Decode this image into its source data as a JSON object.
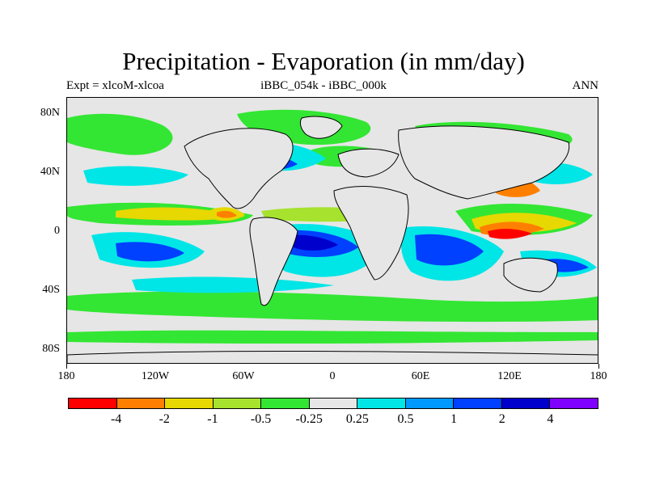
{
  "title": "Precipitation - Evaporation (in mm/day)",
  "subtitle_left": "Expt = xlcoM-xlcoa",
  "subtitle_center": "iBBC_054k - iBBC_000k",
  "subtitle_right": "ANN",
  "y_axis_labels": [
    "80N",
    "40N",
    "0",
    "40S",
    "80S"
  ],
  "x_axis_labels": [
    "180",
    "120W",
    "60W",
    "0",
    "60E",
    "120E",
    "180"
  ],
  "colorbar": {
    "colors": [
      "#ff0000",
      "#ff8000",
      "#e6d800",
      "#a6e22e",
      "#33e633",
      "#e6e6e6",
      "#00e6e6",
      "#0099ff",
      "#0040ff",
      "#0000cc",
      "#7f00ff"
    ],
    "labels": [
      "-4",
      "-2",
      "-1",
      "-0.5",
      "-0.25",
      "0.25",
      "0.5",
      "1",
      "2",
      "4"
    ]
  },
  "map_colors": {
    "background": "#e6e6e6",
    "red": "#ff0000",
    "orange": "#ff8000",
    "yellow": "#e6d800",
    "lightgreen": "#a6e22e",
    "green": "#33e633",
    "cyan": "#00e6e6",
    "lightblue": "#0099ff",
    "blue": "#0040ff",
    "darkblue": "#0000cc",
    "coast": "#000000"
  }
}
